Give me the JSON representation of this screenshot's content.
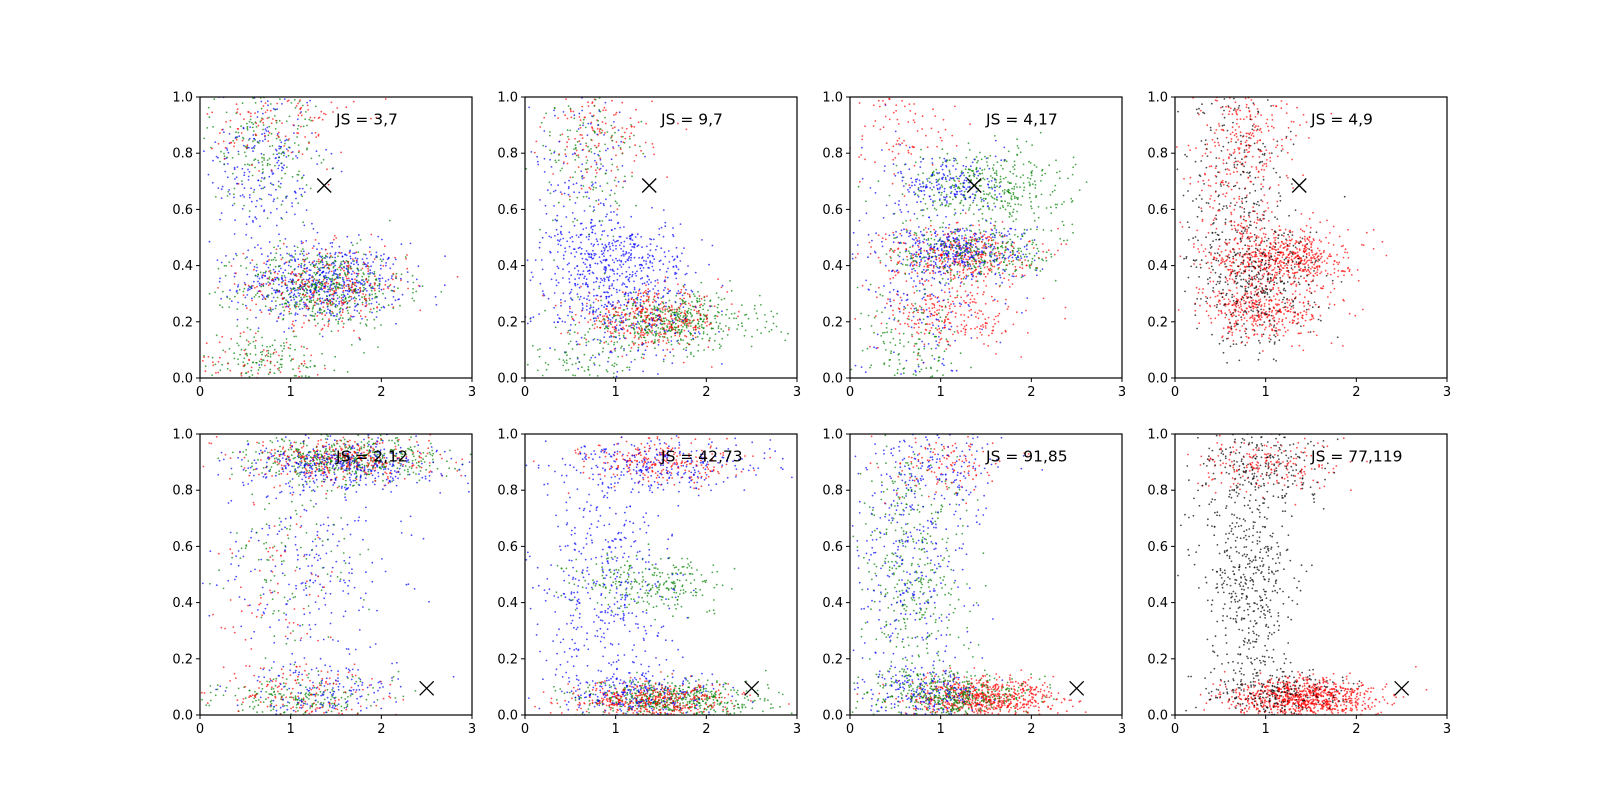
{
  "figure": {
    "rows": 2,
    "cols": 4
  },
  "chart_data": [
    {
      "type": "scatter",
      "xlim": [
        0,
        3
      ],
      "ylim": [
        0,
        1
      ],
      "xticks": [
        "0",
        "1",
        "2",
        "3"
      ],
      "yticks": [
        "0.0",
        "0.2",
        "0.4",
        "0.6",
        "0.8",
        "1.0"
      ],
      "annotation": "JS = 3,7",
      "annotation_pos": [
        1.5,
        0.92
      ],
      "marker": [
        1.37,
        0.685
      ],
      "clusters": [
        {
          "color": "#0000ff",
          "cx": 1.35,
          "cy": 0.34,
          "sx": 0.45,
          "sy": 0.07,
          "n": 600
        },
        {
          "color": "#008000",
          "cx": 1.35,
          "cy": 0.32,
          "sx": 0.45,
          "sy": 0.07,
          "n": 500
        },
        {
          "color": "#ff0000",
          "cx": 1.4,
          "cy": 0.33,
          "sx": 0.45,
          "sy": 0.07,
          "n": 300
        },
        {
          "color": "#0000ff",
          "cx": 0.7,
          "cy": 0.75,
          "sx": 0.3,
          "sy": 0.18,
          "n": 250
        },
        {
          "color": "#008000",
          "cx": 0.7,
          "cy": 0.85,
          "sx": 0.3,
          "sy": 0.12,
          "n": 200
        },
        {
          "color": "#ff0000",
          "cx": 0.9,
          "cy": 0.9,
          "sx": 0.4,
          "sy": 0.08,
          "n": 120
        },
        {
          "color": "#008000",
          "cx": 0.7,
          "cy": 0.06,
          "sx": 0.4,
          "sy": 0.05,
          "n": 150
        },
        {
          "color": "#ff0000",
          "cx": 0.7,
          "cy": 0.05,
          "sx": 0.4,
          "sy": 0.05,
          "n": 80
        }
      ]
    },
    {
      "type": "scatter",
      "xlim": [
        0,
        3
      ],
      "ylim": [
        0,
        1
      ],
      "xticks": [
        "0",
        "1",
        "2",
        "3"
      ],
      "yticks": [
        "0.0",
        "0.2",
        "0.4",
        "0.6",
        "0.8",
        "1.0"
      ],
      "annotation": "JS = 9,7",
      "annotation_pos": [
        1.5,
        0.92
      ],
      "marker": [
        1.37,
        0.685
      ],
      "clusters": [
        {
          "color": "#008000",
          "cx": 1.6,
          "cy": 0.2,
          "sx": 0.5,
          "sy": 0.05,
          "n": 500
        },
        {
          "color": "#ff0000",
          "cx": 1.4,
          "cy": 0.21,
          "sx": 0.4,
          "sy": 0.05,
          "n": 400
        },
        {
          "color": "#0000ff",
          "cx": 1.0,
          "cy": 0.3,
          "sx": 0.45,
          "sy": 0.12,
          "n": 500
        },
        {
          "color": "#0000ff",
          "cx": 1.0,
          "cy": 0.45,
          "sx": 0.35,
          "sy": 0.06,
          "n": 200
        },
        {
          "color": "#ff0000",
          "cx": 0.8,
          "cy": 0.85,
          "sx": 0.3,
          "sy": 0.1,
          "n": 150
        },
        {
          "color": "#008000",
          "cx": 0.7,
          "cy": 0.8,
          "sx": 0.3,
          "sy": 0.15,
          "n": 150
        },
        {
          "color": "#0000ff",
          "cx": 0.6,
          "cy": 0.7,
          "sx": 0.3,
          "sy": 0.18,
          "n": 150
        },
        {
          "color": "#008000",
          "cx": 0.6,
          "cy": 0.05,
          "sx": 0.4,
          "sy": 0.05,
          "n": 100
        }
      ]
    },
    {
      "type": "scatter",
      "xlim": [
        0,
        3
      ],
      "ylim": [
        0,
        1
      ],
      "xticks": [
        "0",
        "1",
        "2",
        "3"
      ],
      "yticks": [
        "0.0",
        "0.2",
        "0.4",
        "0.6",
        "0.8",
        "1.0"
      ],
      "annotation": "JS = 4,17",
      "annotation_pos": [
        1.5,
        0.92
      ],
      "marker": [
        1.37,
        0.685
      ],
      "clusters": [
        {
          "color": "#008000",
          "cx": 1.5,
          "cy": 0.68,
          "sx": 0.45,
          "sy": 0.07,
          "n": 400
        },
        {
          "color": "#0000ff",
          "cx": 1.1,
          "cy": 0.69,
          "sx": 0.3,
          "sy": 0.06,
          "n": 200
        },
        {
          "color": "#ff0000",
          "cx": 1.2,
          "cy": 0.44,
          "sx": 0.4,
          "sy": 0.05,
          "n": 400
        },
        {
          "color": "#0000ff",
          "cx": 1.2,
          "cy": 0.45,
          "sx": 0.4,
          "sy": 0.05,
          "n": 350
        },
        {
          "color": "#008000",
          "cx": 1.4,
          "cy": 0.44,
          "sx": 0.45,
          "sy": 0.05,
          "n": 300
        },
        {
          "color": "#ff0000",
          "cx": 1.1,
          "cy": 0.22,
          "sx": 0.4,
          "sy": 0.06,
          "n": 250
        },
        {
          "color": "#0000ff",
          "cx": 0.8,
          "cy": 0.3,
          "sx": 0.35,
          "sy": 0.2,
          "n": 200
        },
        {
          "color": "#008000",
          "cx": 0.7,
          "cy": 0.1,
          "sx": 0.3,
          "sy": 0.1,
          "n": 150
        },
        {
          "color": "#ff0000",
          "cx": 0.6,
          "cy": 0.88,
          "sx": 0.3,
          "sy": 0.1,
          "n": 100
        }
      ]
    },
    {
      "type": "scatter",
      "xlim": [
        0,
        3
      ],
      "ylim": [
        0,
        1
      ],
      "xticks": [
        "0",
        "1",
        "2",
        "3"
      ],
      "yticks": [
        "0.0",
        "0.2",
        "0.4",
        "0.6",
        "0.8",
        "1.0"
      ],
      "annotation": "JS = 4,9",
      "annotation_pos": [
        1.5,
        0.92
      ],
      "marker": [
        1.37,
        0.685
      ],
      "clusters": [
        {
          "color": "#ff0000",
          "cx": 1.2,
          "cy": 0.43,
          "sx": 0.35,
          "sy": 0.05,
          "n": 600
        },
        {
          "color": "#ff0000",
          "cx": 1.0,
          "cy": 0.24,
          "sx": 0.35,
          "sy": 0.05,
          "n": 400
        },
        {
          "color": "#000000",
          "cx": 0.9,
          "cy": 0.35,
          "sx": 0.35,
          "sy": 0.12,
          "n": 400
        },
        {
          "color": "#ff0000",
          "cx": 0.8,
          "cy": 0.85,
          "sx": 0.3,
          "sy": 0.12,
          "n": 250
        },
        {
          "color": "#000000",
          "cx": 0.7,
          "cy": 0.7,
          "sx": 0.3,
          "sy": 0.2,
          "n": 250
        },
        {
          "color": "#ff0000",
          "cx": 0.6,
          "cy": 0.6,
          "sx": 0.25,
          "sy": 0.15,
          "n": 150
        }
      ]
    },
    {
      "type": "scatter",
      "xlim": [
        0,
        3
      ],
      "ylim": [
        0,
        1
      ],
      "xticks": [
        "0",
        "1",
        "2",
        "3"
      ],
      "yticks": [
        "0.0",
        "0.2",
        "0.4",
        "0.6",
        "0.8",
        "1.0"
      ],
      "annotation": "JS = 2,12",
      "annotation_pos": [
        1.5,
        0.92
      ],
      "marker": [
        2.5,
        0.095
      ],
      "clusters": [
        {
          "color": "#008000",
          "cx": 1.6,
          "cy": 0.91,
          "sx": 0.5,
          "sy": 0.04,
          "n": 500
        },
        {
          "color": "#ff0000",
          "cx": 1.6,
          "cy": 0.91,
          "sx": 0.5,
          "sy": 0.04,
          "n": 350
        },
        {
          "color": "#0000ff",
          "cx": 1.6,
          "cy": 0.89,
          "sx": 0.55,
          "sy": 0.05,
          "n": 400
        },
        {
          "color": "#0000ff",
          "cx": 1.2,
          "cy": 0.5,
          "sx": 0.5,
          "sy": 0.18,
          "n": 220
        },
        {
          "color": "#008000",
          "cx": 1.0,
          "cy": 0.55,
          "sx": 0.35,
          "sy": 0.15,
          "n": 100
        },
        {
          "color": "#ff0000",
          "cx": 0.9,
          "cy": 0.45,
          "sx": 0.4,
          "sy": 0.18,
          "n": 80
        },
        {
          "color": "#008000",
          "cx": 1.1,
          "cy": 0.06,
          "sx": 0.45,
          "sy": 0.04,
          "n": 200
        },
        {
          "color": "#ff0000",
          "cx": 1.1,
          "cy": 0.07,
          "sx": 0.45,
          "sy": 0.05,
          "n": 150
        },
        {
          "color": "#0000ff",
          "cx": 1.4,
          "cy": 0.08,
          "sx": 0.5,
          "sy": 0.05,
          "n": 150
        }
      ]
    },
    {
      "type": "scatter",
      "xlim": [
        0,
        3
      ],
      "ylim": [
        0,
        1
      ],
      "xticks": [
        "0",
        "1",
        "2",
        "3"
      ],
      "yticks": [
        "0.0",
        "0.2",
        "0.4",
        "0.6",
        "0.8",
        "1.0"
      ],
      "annotation": "JS = 42,73",
      "annotation_pos": [
        1.5,
        0.92
      ],
      "marker": [
        2.5,
        0.095
      ],
      "clusters": [
        {
          "color": "#ff0000",
          "cx": 1.5,
          "cy": 0.9,
          "sx": 0.4,
          "sy": 0.04,
          "n": 250
        },
        {
          "color": "#0000ff",
          "cx": 1.4,
          "cy": 0.89,
          "sx": 0.6,
          "sy": 0.05,
          "n": 300
        },
        {
          "color": "#008000",
          "cx": 1.4,
          "cy": 0.47,
          "sx": 0.4,
          "sy": 0.05,
          "n": 250
        },
        {
          "color": "#0000ff",
          "cx": 0.9,
          "cy": 0.45,
          "sx": 0.4,
          "sy": 0.2,
          "n": 400
        },
        {
          "color": "#008000",
          "cx": 1.6,
          "cy": 0.05,
          "sx": 0.5,
          "sy": 0.035,
          "n": 550
        },
        {
          "color": "#ff0000",
          "cx": 1.4,
          "cy": 0.05,
          "sx": 0.45,
          "sy": 0.035,
          "n": 450
        },
        {
          "color": "#0000ff",
          "cx": 1.2,
          "cy": 0.08,
          "sx": 0.5,
          "sy": 0.05,
          "n": 250
        }
      ]
    },
    {
      "type": "scatter",
      "xlim": [
        0,
        3
      ],
      "ylim": [
        0,
        1
      ],
      "xticks": [
        "0",
        "1",
        "2",
        "3"
      ],
      "yticks": [
        "0.0",
        "0.2",
        "0.4",
        "0.6",
        "0.8",
        "1.0"
      ],
      "annotation": "JS = 91,85",
      "annotation_pos": [
        1.5,
        0.92
      ],
      "marker": [
        2.5,
        0.095
      ],
      "clusters": [
        {
          "color": "#ff0000",
          "cx": 1.5,
          "cy": 0.06,
          "sx": 0.4,
          "sy": 0.035,
          "n": 700
        },
        {
          "color": "#008000",
          "cx": 1.1,
          "cy": 0.07,
          "sx": 0.4,
          "sy": 0.04,
          "n": 400
        },
        {
          "color": "#0000ff",
          "cx": 0.8,
          "cy": 0.08,
          "sx": 0.35,
          "sy": 0.05,
          "n": 200
        },
        {
          "color": "#008000",
          "cx": 0.7,
          "cy": 0.5,
          "sx": 0.3,
          "sy": 0.25,
          "n": 400
        },
        {
          "color": "#0000ff",
          "cx": 0.7,
          "cy": 0.55,
          "sx": 0.35,
          "sy": 0.22,
          "n": 300
        },
        {
          "color": "#ff0000",
          "cx": 1.1,
          "cy": 0.9,
          "sx": 0.4,
          "sy": 0.06,
          "n": 120
        },
        {
          "color": "#0000ff",
          "cx": 1.0,
          "cy": 0.88,
          "sx": 0.4,
          "sy": 0.07,
          "n": 150
        }
      ]
    },
    {
      "type": "scatter",
      "xlim": [
        0,
        3
      ],
      "ylim": [
        0,
        1
      ],
      "xticks": [
        "0",
        "1",
        "2",
        "3"
      ],
      "yticks": [
        "0.0",
        "0.2",
        "0.4",
        "0.6",
        "0.8",
        "1.0"
      ],
      "annotation": "JS = 77,119",
      "annotation_pos": [
        1.5,
        0.92
      ],
      "marker": [
        2.5,
        0.095
      ],
      "clusters": [
        {
          "color": "#ff0000",
          "cx": 1.4,
          "cy": 0.06,
          "sx": 0.4,
          "sy": 0.035,
          "n": 900
        },
        {
          "color": "#000000",
          "cx": 1.1,
          "cy": 0.08,
          "sx": 0.4,
          "sy": 0.05,
          "n": 250
        },
        {
          "color": "#000000",
          "cx": 0.8,
          "cy": 0.5,
          "sx": 0.25,
          "sy": 0.22,
          "n": 500
        },
        {
          "color": "#ff0000",
          "cx": 1.0,
          "cy": 0.89,
          "sx": 0.4,
          "sy": 0.05,
          "n": 200
        },
        {
          "color": "#000000",
          "cx": 1.0,
          "cy": 0.88,
          "sx": 0.4,
          "sy": 0.07,
          "n": 200
        }
      ]
    }
  ]
}
